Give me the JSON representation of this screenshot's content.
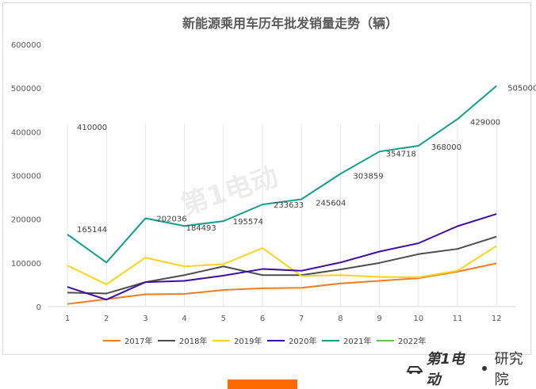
{
  "chart_data": {
    "type": "line",
    "title": "新能源乘用车历年批发销量走势（辆）",
    "x": [
      "1",
      "2",
      "3",
      "4",
      "5",
      "6",
      "7",
      "8",
      "9",
      "10",
      "11",
      "12"
    ],
    "ylim": [
      0,
      600000
    ],
    "yticks": [
      0,
      100000,
      200000,
      300000,
      400000,
      500000,
      600000
    ],
    "grid": "vertical",
    "legend_position": "bottom",
    "series": [
      {
        "name": "2017年",
        "color": "#f07d1e",
        "values": [
          6000,
          17000,
          28000,
          29000,
          38000,
          42000,
          43000,
          53000,
          59000,
          65000,
          80000,
          99000
        ]
      },
      {
        "name": "2018年",
        "color": "#4d4d4d",
        "values": [
          32000,
          30000,
          56000,
          72000,
          92000,
          72000,
          72000,
          85000,
          100000,
          120000,
          132000,
          160000
        ]
      },
      {
        "name": "2019年",
        "color": "#ffd21e",
        "values": [
          94000,
          51000,
          112000,
          92000,
          97000,
          134000,
          70000,
          72000,
          68000,
          67000,
          82000,
          139000
        ]
      },
      {
        "name": "2020年",
        "color": "#3d0da8",
        "values": [
          45000,
          16000,
          56000,
          59000,
          71000,
          86000,
          82000,
          101000,
          126000,
          145000,
          184000,
          212000
        ]
      },
      {
        "name": "2021年",
        "color": "#139d8c",
        "values": [
          165144,
          101000,
          202036,
          184493,
          195574,
          233633,
          245604,
          303859,
          354718,
          368000,
          429000,
          505000
        ]
      },
      {
        "name": "2022年",
        "color": "#6ec04b",
        "values": [
          410000,
          null,
          null,
          null,
          null,
          null,
          null,
          null,
          null,
          null,
          null,
          null
        ]
      }
    ],
    "data_labels": [
      {
        "series": "2022年",
        "index": 0,
        "text": "410000"
      },
      {
        "series": "2021年",
        "index": 0,
        "text": "165144"
      },
      {
        "series": "2021年",
        "index": 2,
        "text": "202036"
      },
      {
        "series": "2021年",
        "index": 3,
        "text": "184493"
      },
      {
        "series": "2021年",
        "index": 4,
        "text": "195574"
      },
      {
        "series": "2021年",
        "index": 5,
        "text": "233633"
      },
      {
        "series": "2021年",
        "index": 6,
        "text": "245604"
      },
      {
        "series": "2021年",
        "index": 7,
        "text": "303859"
      },
      {
        "series": "2021年",
        "index": 8,
        "text": "354718"
      },
      {
        "series": "2021年",
        "index": 9,
        "text": "368000"
      },
      {
        "series": "2021年",
        "index": 10,
        "text": "429000"
      },
      {
        "series": "2021年",
        "index": 11,
        "text": "505000"
      }
    ]
  },
  "watermark": {
    "text": "第1电动"
  },
  "brand": {
    "logo_text": "第1电动",
    "suffix": "研究院"
  }
}
